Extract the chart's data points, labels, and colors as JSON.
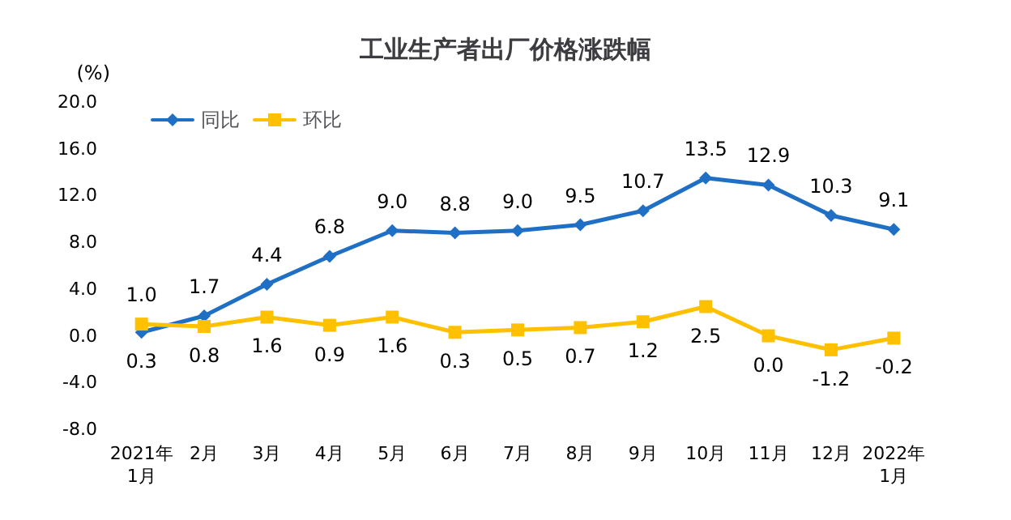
{
  "chart_data": {
    "type": "line",
    "title": "工业生产者出厂价格涨跌幅",
    "ylabel": "(%)",
    "categories": [
      "2021年\n1月",
      "2月",
      "3月",
      "4月",
      "5月",
      "6月",
      "7月",
      "8月",
      "9月",
      "10月",
      "11月",
      "12月",
      "2022年\n1月"
    ],
    "series": [
      {
        "name": "同比",
        "color": "#1f6fc5",
        "marker": "diamond",
        "values": [
          0.3,
          1.7,
          4.4,
          6.8,
          9.0,
          8.8,
          9.0,
          9.5,
          10.7,
          13.5,
          12.9,
          10.3,
          9.1
        ],
        "value_labels": [
          "0.3",
          "1.7",
          "4.4",
          "6.8",
          "9.0",
          "8.8",
          "9.0",
          "9.5",
          "10.7",
          "13.5",
          "12.9",
          "10.3",
          "9.1"
        ]
      },
      {
        "name": "环比",
        "color": "#ffc000",
        "marker": "square",
        "values": [
          1.0,
          0.8,
          1.6,
          0.9,
          1.6,
          0.3,
          0.5,
          0.7,
          1.2,
          2.5,
          0.0,
          -1.2,
          -0.2
        ],
        "value_labels": [
          "1.0",
          "0.8",
          "1.6",
          "0.9",
          "1.6",
          "0.3",
          "0.5",
          "0.7",
          "1.2",
          "2.5",
          "0.0",
          "-1.2",
          "-0.2"
        ]
      }
    ],
    "ylim": [
      -8,
      20
    ],
    "yticks": [
      {
        "value": -8,
        "label": "-8.0"
      },
      {
        "value": -4,
        "label": "-4.0"
      },
      {
        "value": 0,
        "label": "0.0"
      },
      {
        "value": 4,
        "label": "4.0"
      },
      {
        "value": 8,
        "label": "8.0"
      },
      {
        "value": 12,
        "label": "12.0"
      },
      {
        "value": 16,
        "label": "16.0"
      },
      {
        "value": 20,
        "label": "20.0"
      }
    ],
    "grid": false,
    "legend": "top left",
    "line_style": "solid"
  }
}
